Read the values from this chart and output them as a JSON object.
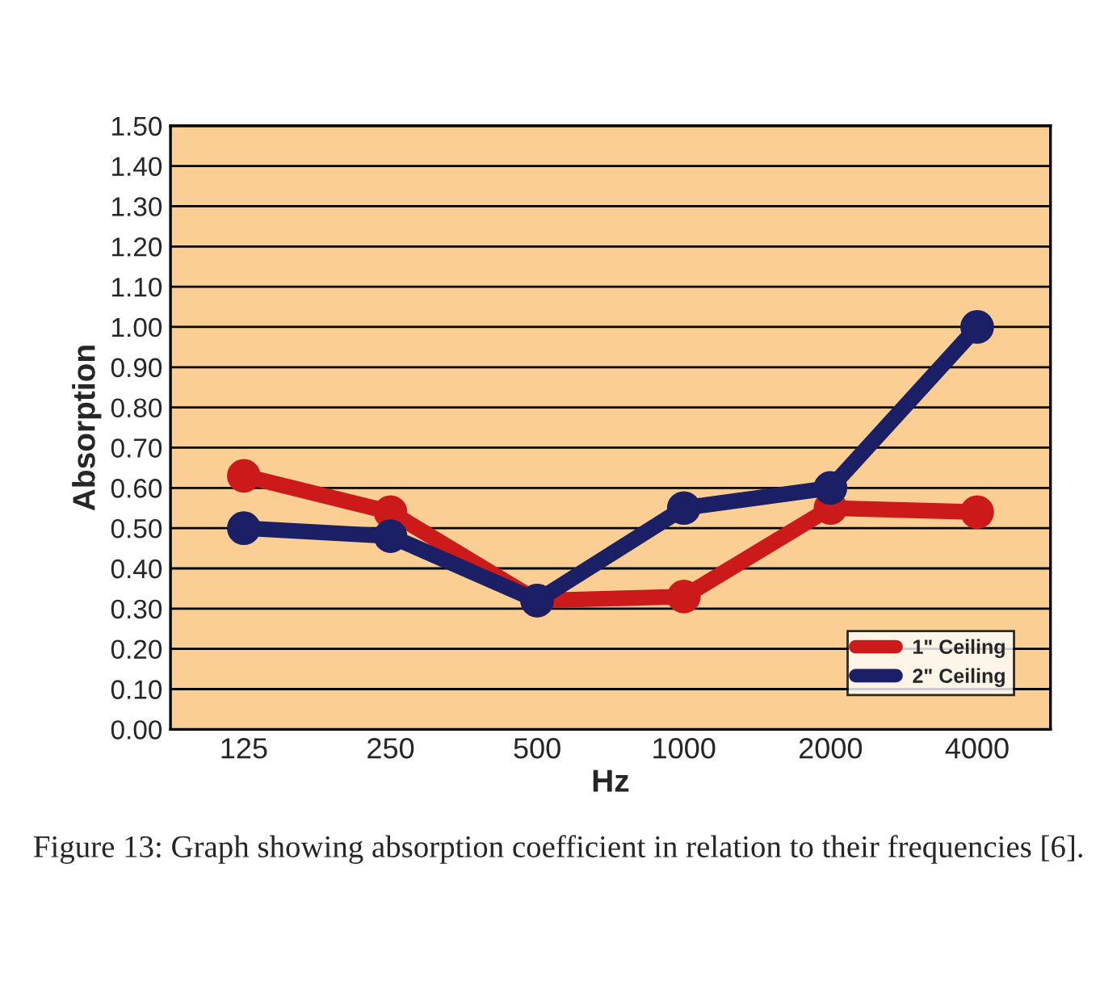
{
  "chart_data": {
    "type": "line",
    "xlabel": "Hz",
    "ylabel": "Absorption",
    "categories": [
      "125",
      "250",
      "500",
      "1000",
      "2000",
      "4000"
    ],
    "series": [
      {
        "name": "1\" Ceiling",
        "color": "#cc1a1a",
        "values": [
          0.63,
          0.54,
          0.32,
          0.33,
          0.55,
          0.54
        ]
      },
      {
        "name": "2\" Ceiling",
        "color": "#1a1f66",
        "values": [
          0.5,
          0.48,
          0.32,
          0.55,
          0.6,
          1.0
        ]
      }
    ],
    "ylim": [
      0,
      1.5
    ],
    "yticks": [
      {
        "value": 0,
        "label": "0.00"
      },
      {
        "value": 0.1,
        "label": "0.10"
      },
      {
        "value": 0.2,
        "label": "0.20"
      },
      {
        "value": 0.3,
        "label": "0.30"
      },
      {
        "value": 0.4,
        "label": "0.40"
      },
      {
        "value": 0.5,
        "label": "0.50"
      },
      {
        "value": 0.6,
        "label": "0.60"
      },
      {
        "value": 0.7,
        "label": "0.70"
      },
      {
        "value": 0.8,
        "label": "0.80"
      },
      {
        "value": 0.9,
        "label": "0.90"
      },
      {
        "value": 1.0,
        "label": "1.00"
      },
      {
        "value": 1.1,
        "label": "1.10"
      },
      {
        "value": 1.2,
        "label": "1.20"
      },
      {
        "value": 1.3,
        "label": "1.30"
      },
      {
        "value": 1.4,
        "label": "1.40"
      },
      {
        "value": 1.5,
        "label": "1.50"
      }
    ],
    "grid": "y",
    "legend": "bottom right",
    "marker": "circle",
    "line_style": "solid",
    "annotations": [
      "Figure 13: Graph showing absorption coefficient in relation to their frequencies [6]."
    ]
  }
}
